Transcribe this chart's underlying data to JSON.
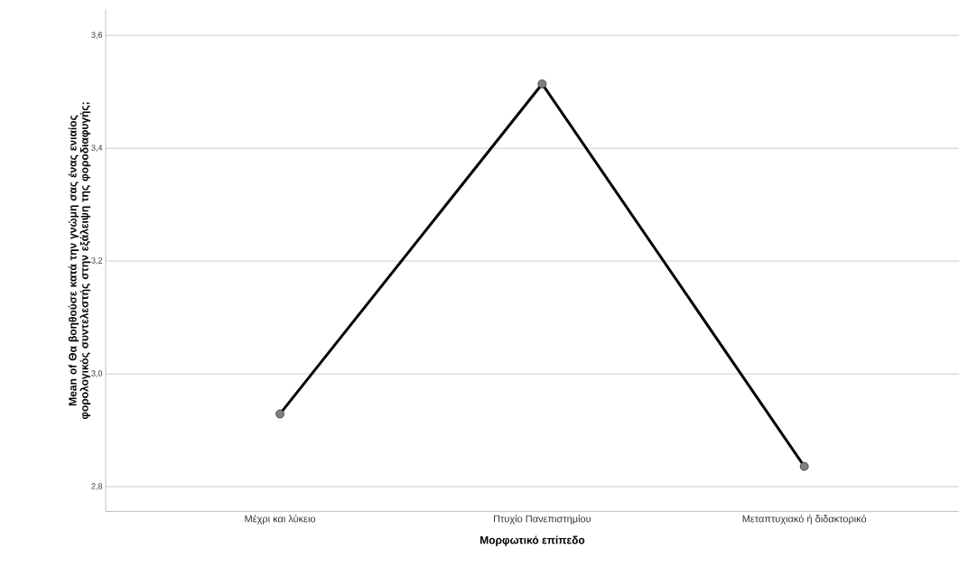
{
  "chart_data": {
    "type": "line",
    "xlabel": "Μορφωτικό επίπεδο",
    "ylabel": "Mean of Θα βοηθούσε κατά την γνώμη σας ένας ενιαίος φορολογικός συντελεστής στην εξάλειψη της φοροδιαφυγής;",
    "categories": [
      "Μέχρι και λύκειο",
      "Πτυχίο Πανεπιστημίου",
      "Μεταπτυχιακό ή διδακτορικό"
    ],
    "values": [
      2.929,
      3.514,
      2.836
    ],
    "color": "#000000",
    "ylim": [
      2.756,
      3.646
    ],
    "yticks": [
      {
        "value": 2.8,
        "label": "2,8"
      },
      {
        "value": 3.0,
        "label": "3,0"
      },
      {
        "value": 3.2,
        "label": "3,2"
      },
      {
        "value": 3.4,
        "label": "3,4"
      },
      {
        "value": 3.6,
        "label": "3,6"
      }
    ],
    "grid": "y",
    "marker": "circle",
    "line_style": "solid"
  }
}
